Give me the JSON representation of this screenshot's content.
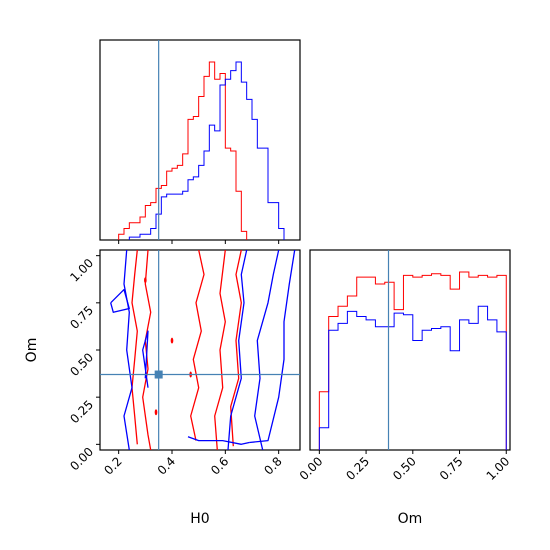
{
  "chart_data": {
    "type": "corner",
    "parameters": [
      "H0",
      "Om"
    ],
    "truth": {
      "H0": 0.35,
      "Om": 0.37
    },
    "colors": {
      "red": "#ff0000",
      "blue": "#0000ff",
      "truth": "#4682b4"
    },
    "hist_h0": {
      "title": "",
      "xlim": [
        0.13,
        0.88
      ],
      "bin_edges": [
        0.16,
        0.18,
        0.2,
        0.22,
        0.24,
        0.26,
        0.28,
        0.3,
        0.32,
        0.34,
        0.36,
        0.38,
        0.4,
        0.42,
        0.44,
        0.46,
        0.48,
        0.5,
        0.52,
        0.54,
        0.56,
        0.58,
        0.6,
        0.62,
        0.64,
        0.66,
        0.68,
        0.7,
        0.72,
        0.74,
        0.76,
        0.78,
        0.8,
        0.82,
        0.84
      ],
      "series": [
        {
          "color": "red",
          "start": 0.2,
          "values": [
            2,
            4,
            6,
            6,
            8,
            12,
            13,
            18,
            19,
            24,
            25,
            26,
            30,
            42,
            43,
            50,
            57,
            62,
            56,
            58,
            32,
            31,
            17,
            3
          ]
        },
        {
          "color": "blue",
          "start": 0.24,
          "values": [
            1,
            1,
            2,
            2,
            4,
            9,
            15,
            16,
            16,
            16,
            17,
            21,
            22,
            26,
            31,
            40,
            38,
            54,
            56,
            59,
            62,
            55,
            49,
            42,
            32,
            32,
            13,
            13,
            4
          ]
        }
      ]
    },
    "hist_om": {
      "xlim": [
        -0.05,
        1.02
      ],
      "bin_edges": [
        0.0,
        0.05,
        0.1,
        0.15,
        0.2,
        0.25,
        0.3,
        0.35,
        0.4,
        0.45,
        0.5,
        0.55,
        0.6,
        0.65,
        0.7,
        0.75,
        0.8,
        0.85,
        0.9,
        0.95,
        1.0
      ],
      "series": [
        {
          "color": "red",
          "values": [
            34,
            78,
            84,
            90,
            101,
            101,
            97,
            98,
            82,
            102,
            101,
            102,
            103,
            102,
            94,
            104,
            101,
            102,
            101,
            102
          ]
        },
        {
          "color": "blue",
          "values": [
            13,
            70,
            74,
            81,
            78,
            76,
            72,
            72,
            80,
            79,
            64,
            70,
            71,
            72,
            58,
            76,
            74,
            84,
            76,
            69
          ]
        }
      ],
      "xticks": [
        "0.00",
        "0.25",
        "0.50",
        "0.75",
        "1.00"
      ]
    },
    "contour_2d": {
      "xlim": [
        0.13,
        0.88
      ],
      "ylim": [
        -0.03,
        1.03
      ],
      "xticks": [
        "0.2",
        "0.4",
        "0.6",
        "0.8"
      ],
      "yticks": [
        "0.00",
        "0.25",
        "0.50",
        "0.75",
        "1.00"
      ],
      "xlabel": "H0",
      "ylabel": "Om",
      "contours": [
        {
          "color": "red",
          "points": [
            [
              0.27,
              1.03
            ],
            [
              0.26,
              0.9
            ],
            [
              0.25,
              0.75
            ],
            [
              0.27,
              0.6
            ],
            [
              0.26,
              0.45
            ],
            [
              0.25,
              0.3
            ],
            [
              0.26,
              0.15
            ],
            [
              0.27,
              0.0
            ]
          ]
        },
        {
          "color": "red",
          "points": [
            [
              0.31,
              1.03
            ],
            [
              0.3,
              0.85
            ],
            [
              0.32,
              0.7
            ],
            [
              0.3,
              0.55
            ],
            [
              0.31,
              0.4
            ],
            [
              0.29,
              0.25
            ],
            [
              0.31,
              0.05
            ],
            [
              0.32,
              -0.03
            ]
          ]
        },
        {
          "color": "red",
          "points": [
            [
              0.49,
              0.02
            ],
            [
              0.47,
              0.15
            ],
            [
              0.5,
              0.3
            ],
            [
              0.48,
              0.45
            ],
            [
              0.51,
              0.6
            ],
            [
              0.49,
              0.75
            ],
            [
              0.52,
              0.9
            ],
            [
              0.5,
              1.03
            ]
          ]
        },
        {
          "color": "red",
          "points": [
            [
              0.57,
              -0.03
            ],
            [
              0.56,
              0.15
            ],
            [
              0.59,
              0.3
            ],
            [
              0.58,
              0.5
            ],
            [
              0.6,
              0.65
            ],
            [
              0.58,
              0.8
            ],
            [
              0.6,
              1.03
            ]
          ]
        },
        {
          "color": "red",
          "points": [
            [
              0.63,
              -0.01
            ],
            [
              0.62,
              0.2
            ],
            [
              0.65,
              0.35
            ],
            [
              0.64,
              0.55
            ],
            [
              0.66,
              0.75
            ],
            [
              0.64,
              0.9
            ],
            [
              0.66,
              1.03
            ]
          ]
        },
        {
          "color": "blue",
          "points": [
            [
              0.23,
              1.03
            ],
            [
              0.22,
              0.85
            ],
            [
              0.24,
              0.7
            ],
            [
              0.23,
              0.5
            ],
            [
              0.25,
              0.3
            ],
            [
              0.22,
              0.15
            ],
            [
              0.24,
              -0.03
            ]
          ]
        },
        {
          "color": "blue",
          "points": [
            [
              0.31,
              0.3
            ],
            [
              0.29,
              0.5
            ],
            [
              0.31,
              0.6
            ],
            [
              0.3,
              0.35
            ]
          ]
        },
        {
          "color": "blue",
          "points": [
            [
              0.17,
              0.75
            ],
            [
              0.22,
              0.82
            ],
            [
              0.24,
              0.72
            ],
            [
              0.18,
              0.7
            ],
            [
              0.17,
              0.75
            ]
          ]
        },
        {
          "color": "blue",
          "points": [
            [
              0.61,
              -0.03
            ],
            [
              0.62,
              0.15
            ],
            [
              0.66,
              0.35
            ],
            [
              0.65,
              0.55
            ],
            [
              0.67,
              0.75
            ],
            [
              0.66,
              0.9
            ],
            [
              0.68,
              1.03
            ]
          ]
        },
        {
          "color": "blue",
          "points": [
            [
              0.74,
              -0.03
            ],
            [
              0.71,
              0.15
            ],
            [
              0.73,
              0.35
            ],
            [
              0.72,
              0.55
            ],
            [
              0.76,
              0.75
            ],
            [
              0.78,
              0.9
            ],
            [
              0.8,
              1.03
            ]
          ]
        },
        {
          "color": "blue",
          "points": [
            [
              0.46,
              0.04
            ],
            [
              0.5,
              0.02
            ],
            [
              0.59,
              0.02
            ],
            [
              0.66,
              0.0
            ],
            [
              0.69,
              0.01
            ]
          ]
        },
        {
          "color": "blue",
          "points": [
            [
              0.69,
              0.01
            ],
            [
              0.76,
              0.02
            ],
            [
              0.8,
              0.25
            ],
            [
              0.82,
              0.45
            ],
            [
              0.82,
              0.65
            ],
            [
              0.84,
              0.85
            ],
            [
              0.86,
              1.03
            ]
          ]
        }
      ],
      "dots": [
        {
          "color": "red",
          "x": 0.34,
          "y": 0.17
        },
        {
          "color": "red",
          "x": 0.3,
          "y": 0.87
        },
        {
          "color": "red",
          "x": 0.4,
          "y": 0.55
        },
        {
          "color": "red",
          "x": 0.47,
          "y": 0.37
        },
        {
          "color": "red",
          "x": 0.35,
          "y": 0.37
        }
      ]
    }
  }
}
